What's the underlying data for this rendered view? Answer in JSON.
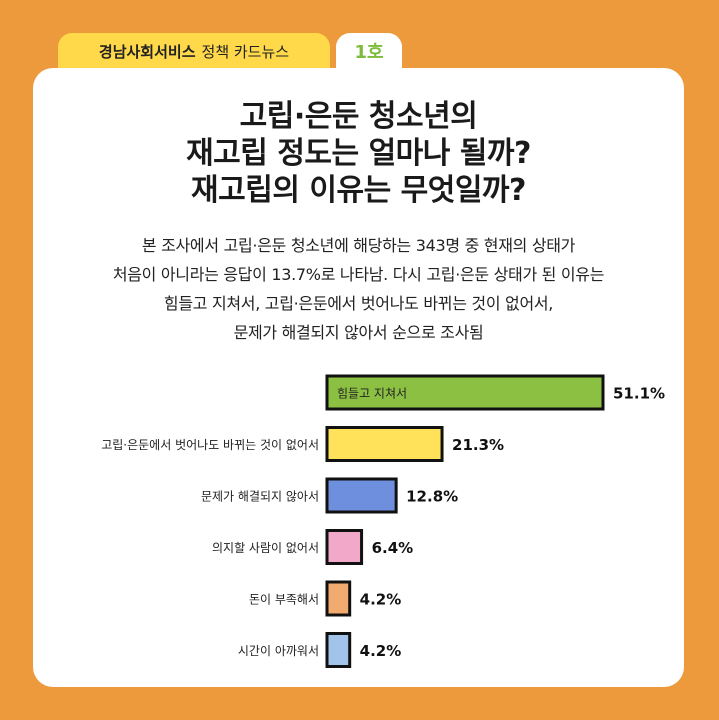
{
  "header": {
    "org": "경남사회서비스",
    "label": "정책 카드뉴스",
    "issue": "1호"
  },
  "title": {
    "line1": "고립·은둔 청소년의",
    "line2": "재고립 정도는 얼마나 될까?",
    "line3": "재고립의 이유는 무엇일까?"
  },
  "description": {
    "line1": "본 조사에서 고립·은둔 청소년에 해당하는 343명 중 현재의 상태가",
    "line2": "처음이 아니라는 응답이 13.7%로 나타남. 다시 고립·은둔 상태가 된 이유는",
    "line3": "힘들고 지쳐서, 고립·은둔에서 벗어나도 바뀌는 것이 없어서,",
    "line4": "문제가 해결되지 않아서 순으로 조사됨"
  },
  "chart_data": {
    "type": "bar",
    "orientation": "horizontal",
    "categories": [
      "힘들고 지쳐서",
      "고립·은둔에서 벗어나도 바뀌는 것이 없어서",
      "문제가 해결되지 않아서",
      "의지할 사람이 없어서",
      "돈이 부족해서",
      "시간이 아까워서"
    ],
    "values": [
      51.1,
      21.3,
      12.8,
      6.4,
      4.2,
      4.2
    ],
    "value_labels": [
      "51.1%",
      "21.3%",
      "12.8%",
      "6.4%",
      "4.2%",
      "4.2%"
    ],
    "colors": [
      "#8cc043",
      "#ffe15a",
      "#6e8fdd",
      "#f2a9c9",
      "#f1aa6f",
      "#a3c4ea"
    ],
    "ylim": [
      0,
      51.1
    ]
  }
}
